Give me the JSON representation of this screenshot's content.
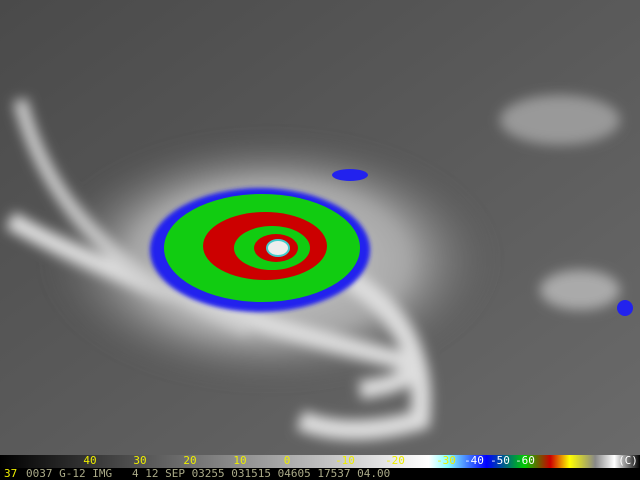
{
  "colorbar": {
    "labels": [
      "40",
      "30",
      "20",
      "10",
      "0",
      "-10",
      "-20",
      "-30",
      "-40",
      "-50",
      "-60"
    ],
    "unit": "(C)"
  },
  "footer": {
    "id": "37",
    "text": "0037 G-12 IMG   4 12 SEP 03255 031515 04605 17537 04.00"
  }
}
